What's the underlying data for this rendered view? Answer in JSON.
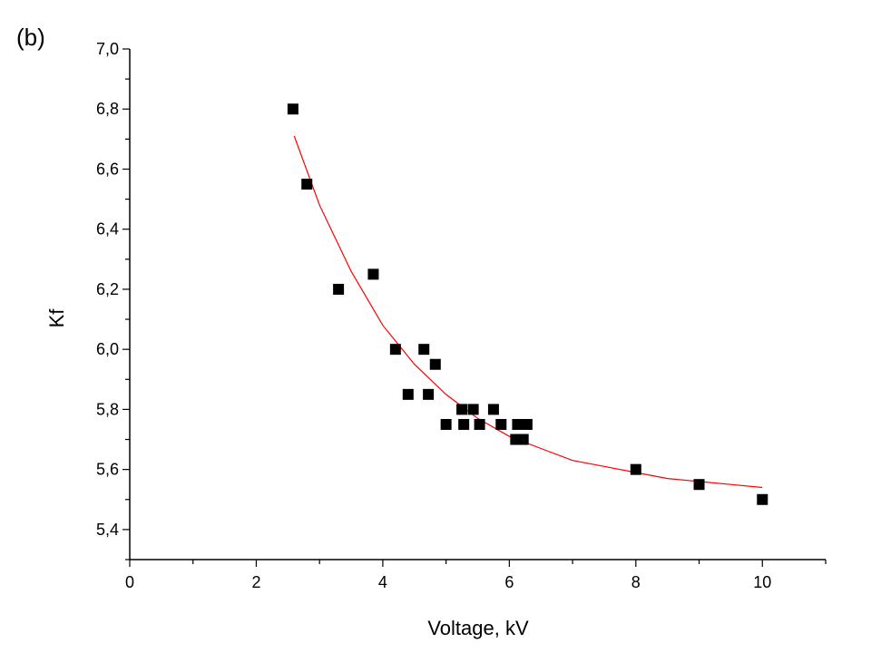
{
  "panel_label": "(b)",
  "chart_data": {
    "type": "scatter",
    "title": "",
    "xlabel": "Voltage, kV",
    "ylabel": "Kf",
    "xlim": [
      0,
      11
    ],
    "ylim": [
      5.3,
      7.0
    ],
    "x_ticks": [
      0,
      2,
      4,
      6,
      8,
      10
    ],
    "x_tick_labels": [
      "0",
      "2",
      "4",
      "6",
      "8",
      "10"
    ],
    "y_ticks": [
      5.4,
      5.6,
      5.8,
      6.0,
      6.2,
      6.4,
      6.6,
      6.8,
      7.0
    ],
    "y_tick_labels": [
      "5,4",
      "5,6",
      "5,8",
      "6,0",
      "6,2",
      "6,4",
      "6,6",
      "6,8",
      "7,0"
    ],
    "grid": false,
    "series": [
      {
        "type": "scatter",
        "marker": "square",
        "color": "#000000",
        "points": [
          {
            "x": 2.58,
            "y": 6.8
          },
          {
            "x": 2.8,
            "y": 6.55
          },
          {
            "x": 3.3,
            "y": 6.2
          },
          {
            "x": 3.85,
            "y": 6.25
          },
          {
            "x": 4.2,
            "y": 6.0
          },
          {
            "x": 4.4,
            "y": 5.85
          },
          {
            "x": 4.65,
            "y": 6.0
          },
          {
            "x": 4.72,
            "y": 5.85
          },
          {
            "x": 4.83,
            "y": 5.95
          },
          {
            "x": 5.0,
            "y": 5.75
          },
          {
            "x": 5.25,
            "y": 5.8
          },
          {
            "x": 5.28,
            "y": 5.75
          },
          {
            "x": 5.43,
            "y": 5.8
          },
          {
            "x": 5.53,
            "y": 5.75
          },
          {
            "x": 5.75,
            "y": 5.8
          },
          {
            "x": 5.87,
            "y": 5.75
          },
          {
            "x": 6.1,
            "y": 5.7
          },
          {
            "x": 6.13,
            "y": 5.75
          },
          {
            "x": 6.22,
            "y": 5.7
          },
          {
            "x": 6.28,
            "y": 5.75
          },
          {
            "x": 8.0,
            "y": 5.6
          },
          {
            "x": 9.0,
            "y": 5.55
          },
          {
            "x": 10.0,
            "y": 5.5
          }
        ]
      },
      {
        "type": "line",
        "color": "#ff0000",
        "x": [
          2.6,
          3.0,
          3.5,
          4.0,
          4.5,
          5.0,
          5.5,
          6.0,
          6.5,
          7.0,
          7.5,
          8.0,
          8.5,
          9.0,
          9.5,
          10.0
        ],
        "y": [
          6.71,
          6.48,
          6.26,
          6.08,
          5.95,
          5.85,
          5.77,
          5.71,
          5.67,
          5.63,
          5.61,
          5.59,
          5.57,
          5.56,
          5.55,
          5.54
        ]
      }
    ]
  }
}
